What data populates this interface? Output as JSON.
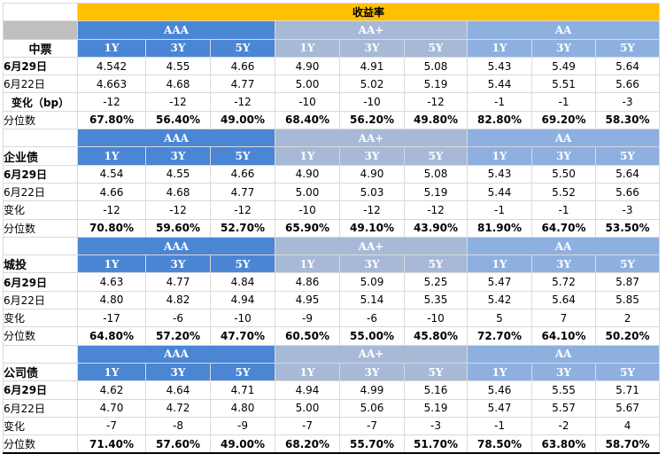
{
  "title": "收益率",
  "grades": [
    "AAA",
    "AA+",
    "AA"
  ],
  "tenors": [
    "1Y",
    "3Y",
    "5Y",
    "1Y",
    "3Y",
    "5Y",
    "1Y",
    "3Y",
    "5Y"
  ],
  "sections": [
    {
      "name": "中票",
      "rows": [
        {
          "label": "6月29日",
          "values": [
            "4.542",
            "4.55",
            "4.66",
            "4.90",
            "4.91",
            "5.08",
            "5.43",
            "5.49",
            "5.64"
          ]
        },
        {
          "label": "6月22日",
          "values": [
            "4.663",
            "4.68",
            "4.77",
            "5.00",
            "5.02",
            "5.19",
            "5.44",
            "5.51",
            "5.66"
          ]
        },
        {
          "label": "变化（bp）",
          "values": [
            "-12",
            "-12",
            "-12",
            "-10",
            "-10",
            "-12",
            "-1",
            "-1",
            "-3"
          ]
        },
        {
          "label": "分位数",
          "values": [
            "67.80%",
            "56.40%",
            "49.00%",
            "68.40%",
            "56.20%",
            "49.80%",
            "82.80%",
            "69.20%",
            "58.30%"
          ]
        }
      ]
    },
    {
      "name": "企业债",
      "rows": [
        {
          "label": "6月29日",
          "values": [
            "4.54",
            "4.55",
            "4.66",
            "4.90",
            "4.90",
            "5.08",
            "5.43",
            "5.50",
            "5.64"
          ]
        },
        {
          "label": "6月22日",
          "values": [
            "4.66",
            "4.68",
            "4.77",
            "5.00",
            "5.03",
            "5.19",
            "5.44",
            "5.52",
            "5.66"
          ]
        },
        {
          "label": "变化",
          "values": [
            "-12",
            "-12",
            "-12",
            "-10",
            "-12",
            "-12",
            "-1",
            "-1",
            "-3"
          ]
        },
        {
          "label": "分位数",
          "values": [
            "70.80%",
            "59.60%",
            "52.70%",
            "65.90%",
            "49.10%",
            "43.90%",
            "81.90%",
            "64.70%",
            "53.50%"
          ]
        }
      ]
    },
    {
      "name": "城投",
      "rows": [
        {
          "label": "6月29日",
          "values": [
            "4.63",
            "4.77",
            "4.84",
            "4.86",
            "5.09",
            "5.25",
            "5.47",
            "5.72",
            "5.87"
          ]
        },
        {
          "label": "6月22日",
          "values": [
            "4.80",
            "4.82",
            "4.94",
            "4.95",
            "5.14",
            "5.35",
            "5.42",
            "5.64",
            "5.85"
          ]
        },
        {
          "label": "变化",
          "values": [
            "-17",
            "-6",
            "-10",
            "-9",
            "-6",
            "-10",
            "5",
            "7",
            "2"
          ]
        },
        {
          "label": "分位数",
          "values": [
            "64.80%",
            "57.20%",
            "47.70%",
            "60.50%",
            "55.00%",
            "45.80%",
            "72.70%",
            "64.10%",
            "50.20%"
          ]
        }
      ]
    },
    {
      "name": "公司债",
      "rows": [
        {
          "label": "6月29日",
          "values": [
            "4.62",
            "4.64",
            "4.71",
            "4.94",
            "4.99",
            "5.16",
            "5.46",
            "5.55",
            "5.71"
          ]
        },
        {
          "label": "6月22日",
          "values": [
            "4.70",
            "4.72",
            "4.80",
            "5.00",
            "5.06",
            "5.19",
            "5.47",
            "5.57",
            "5.67"
          ]
        },
        {
          "label": "变化",
          "values": [
            "-7",
            "-8",
            "-9",
            "-7",
            "-7",
            "-3",
            "-1",
            "-2",
            "4"
          ]
        },
        {
          "label": "分位数",
          "values": [
            "71.40%",
            "57.60%",
            "49.00%",
            "68.20%",
            "55.70%",
            "51.70%",
            "78.50%",
            "63.80%",
            "58.70%"
          ]
        }
      ]
    }
  ],
  "colors": {
    "title_bg": "#ffc000",
    "aaa_bg": "#4a86d4",
    "aa_plus_bg": "#a7b9d6",
    "aa_bg": "#8eb0e0",
    "corner_gray": "#bfbfbf"
  }
}
